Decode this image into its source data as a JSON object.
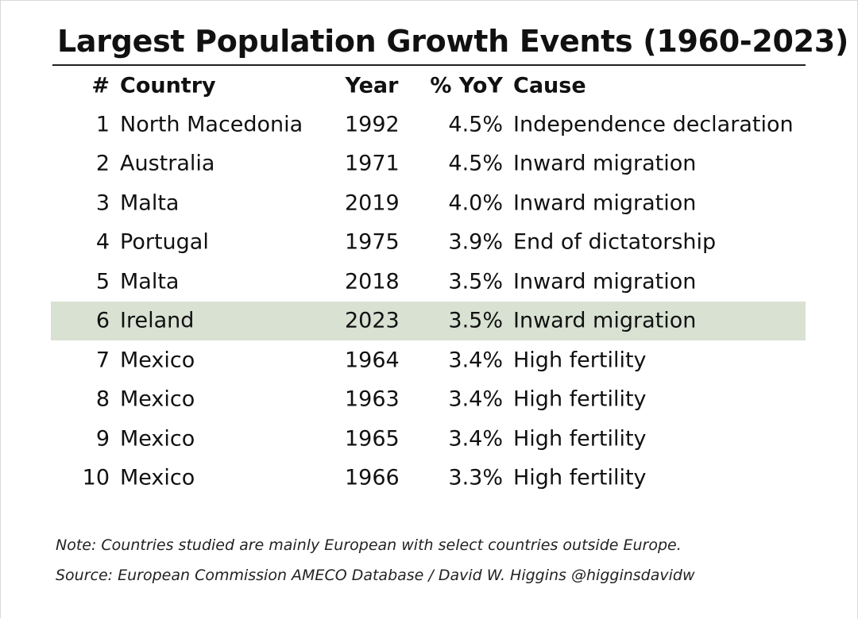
{
  "title": "Largest Population Growth Events (1960-2023)",
  "columns": {
    "rank": "#",
    "country": "Country",
    "year": "Year",
    "pct": "% YoY",
    "cause": "Cause"
  },
  "rows": [
    {
      "rank": "1",
      "country": "North Macedonia",
      "year": "1992",
      "pct": "4.5%",
      "cause": "Independence declaration"
    },
    {
      "rank": "2",
      "country": "Australia",
      "year": "1971",
      "pct": "4.5%",
      "cause": "Inward migration"
    },
    {
      "rank": "3",
      "country": "Malta",
      "year": "2019",
      "pct": "4.0%",
      "cause": "Inward migration"
    },
    {
      "rank": "4",
      "country": "Portugal",
      "year": "1975",
      "pct": "3.9%",
      "cause": "End of dictatorship"
    },
    {
      "rank": "5",
      "country": "Malta",
      "year": "2018",
      "pct": "3.5%",
      "cause": "Inward migration"
    },
    {
      "rank": "6",
      "country": "Ireland",
      "year": "2023",
      "pct": "3.5%",
      "cause": "Inward migration"
    },
    {
      "rank": "7",
      "country": "Mexico",
      "year": "1964",
      "pct": "3.4%",
      "cause": "High fertility"
    },
    {
      "rank": "8",
      "country": "Mexico",
      "year": "1963",
      "pct": "3.4%",
      "cause": "High fertility"
    },
    {
      "rank": "9",
      "country": "Mexico",
      "year": "1965",
      "pct": "3.4%",
      "cause": "High fertility"
    },
    {
      "rank": "10",
      "country": "Mexico",
      "year": "1966",
      "pct": "3.3%",
      "cause": "High fertility"
    }
  ],
  "highlight_color": "#d9e1d3",
  "note": "Note: Countries studied are mainly European with select countries outside Europe.",
  "source": "Source: European Commission AMECO Database / David W. Higgins @higginsdavidw"
}
